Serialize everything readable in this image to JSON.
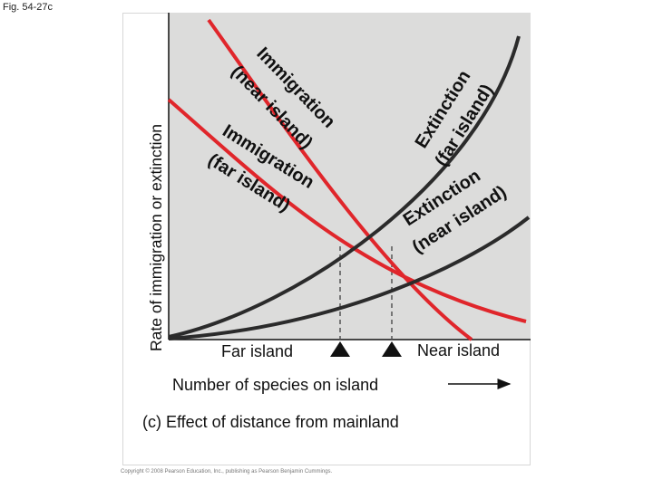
{
  "figure_label": "Fig. 54-27c",
  "y_axis_label": "Rate of immigration or extinction",
  "x_axis_label": "Number of species on island",
  "caption": "(c) Effect of distance from mainland",
  "far_island_label": "Far island",
  "near_island_label": "Near island",
  "curve_labels": {
    "immigration_near": [
      "Immigration",
      "(near island)"
    ],
    "immigration_far": [
      "Immigration",
      "(far island)"
    ],
    "extinction_far": [
      "Extinction",
      "(far island)"
    ],
    "extinction_near": [
      "Extinction",
      "(near island)"
    ]
  },
  "copyright": "Copyright © 2008 Pearson Education, Inc., publishing as Pearson Benjamin Cummings.",
  "colors": {
    "plot_background": "#dcdcdb",
    "immigration": "#e0262b",
    "extinction": "#2b2b2b",
    "text": "#111111"
  }
}
